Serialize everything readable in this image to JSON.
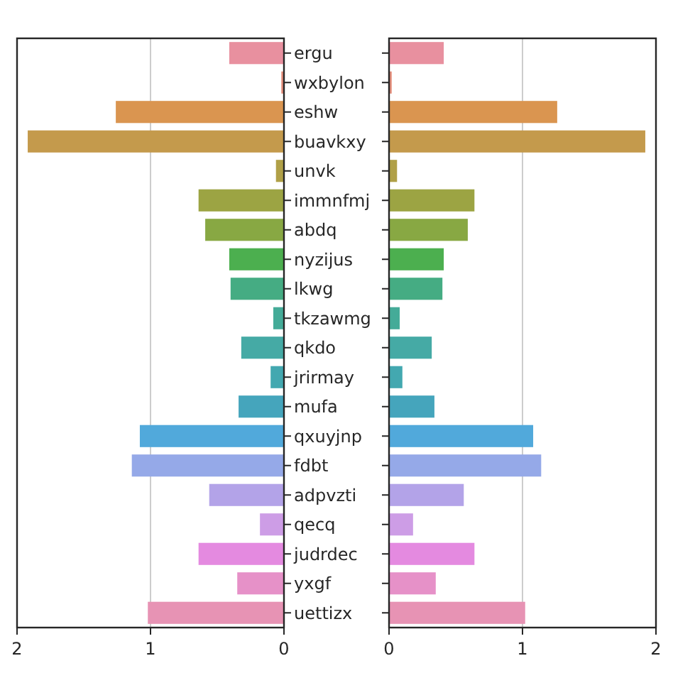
{
  "chart_data": [
    {
      "type": "bar",
      "orientation": "horizontal",
      "categories": [
        "ergu",
        "wxbylon",
        "eshw",
        "buavkxy",
        "unvk",
        "immnfmj",
        "abdq",
        "nyzijus",
        "lkwg",
        "tkzawmg",
        "qkdo",
        "jrirmay",
        "mufa",
        "qxuyjnp",
        "fdbt",
        "adpvzti",
        "qecq",
        "judrdec",
        "yxgf",
        "uettizx"
      ],
      "values": [
        0.41,
        0.02,
        1.26,
        1.92,
        0.06,
        0.64,
        0.59,
        0.41,
        0.4,
        0.08,
        0.32,
        0.1,
        0.34,
        1.08,
        1.14,
        0.56,
        0.18,
        0.64,
        0.35,
        1.02
      ],
      "colors": [
        "#e8909f",
        "#e58f7c",
        "#da9550",
        "#c49a4c",
        "#b0a047",
        "#9ca443",
        "#88a843",
        "#4caf4f",
        "#45ac83",
        "#44ab98",
        "#45aaa5",
        "#43a8b0",
        "#45a5bc",
        "#51a9db",
        "#95a9e8",
        "#b3a3e8",
        "#cd9de6",
        "#e48ae0",
        "#e691c8",
        "#e793b4"
      ],
      "xlim": [
        2,
        0
      ],
      "xticks": [
        2,
        1,
        0
      ],
      "grid": "x"
    },
    {
      "type": "bar",
      "orientation": "horizontal",
      "categories": [
        null,
        null,
        null,
        null,
        null,
        null,
        null,
        null,
        null,
        null,
        null,
        null,
        null,
        null,
        null,
        null,
        null,
        null,
        null,
        null
      ],
      "values": [
        0.41,
        0.02,
        1.26,
        1.92,
        0.06,
        0.64,
        0.59,
        0.41,
        0.4,
        0.08,
        0.32,
        0.1,
        0.34,
        1.08,
        1.14,
        0.56,
        0.18,
        0.64,
        0.35,
        1.02
      ],
      "colors": [
        "#e8909f",
        "#e58f7c",
        "#da9550",
        "#c49a4c",
        "#b0a047",
        "#9ca443",
        "#88a843",
        "#4caf4f",
        "#45ac83",
        "#44ab98",
        "#45aaa5",
        "#43a8b0",
        "#45a5bc",
        "#51a9db",
        "#95a9e8",
        "#b3a3e8",
        "#cd9de6",
        "#e48ae0",
        "#e691c8",
        "#e793b4"
      ],
      "xlim": [
        0,
        2
      ],
      "xticks": [
        0,
        1,
        2
      ],
      "grid": "x"
    }
  ]
}
